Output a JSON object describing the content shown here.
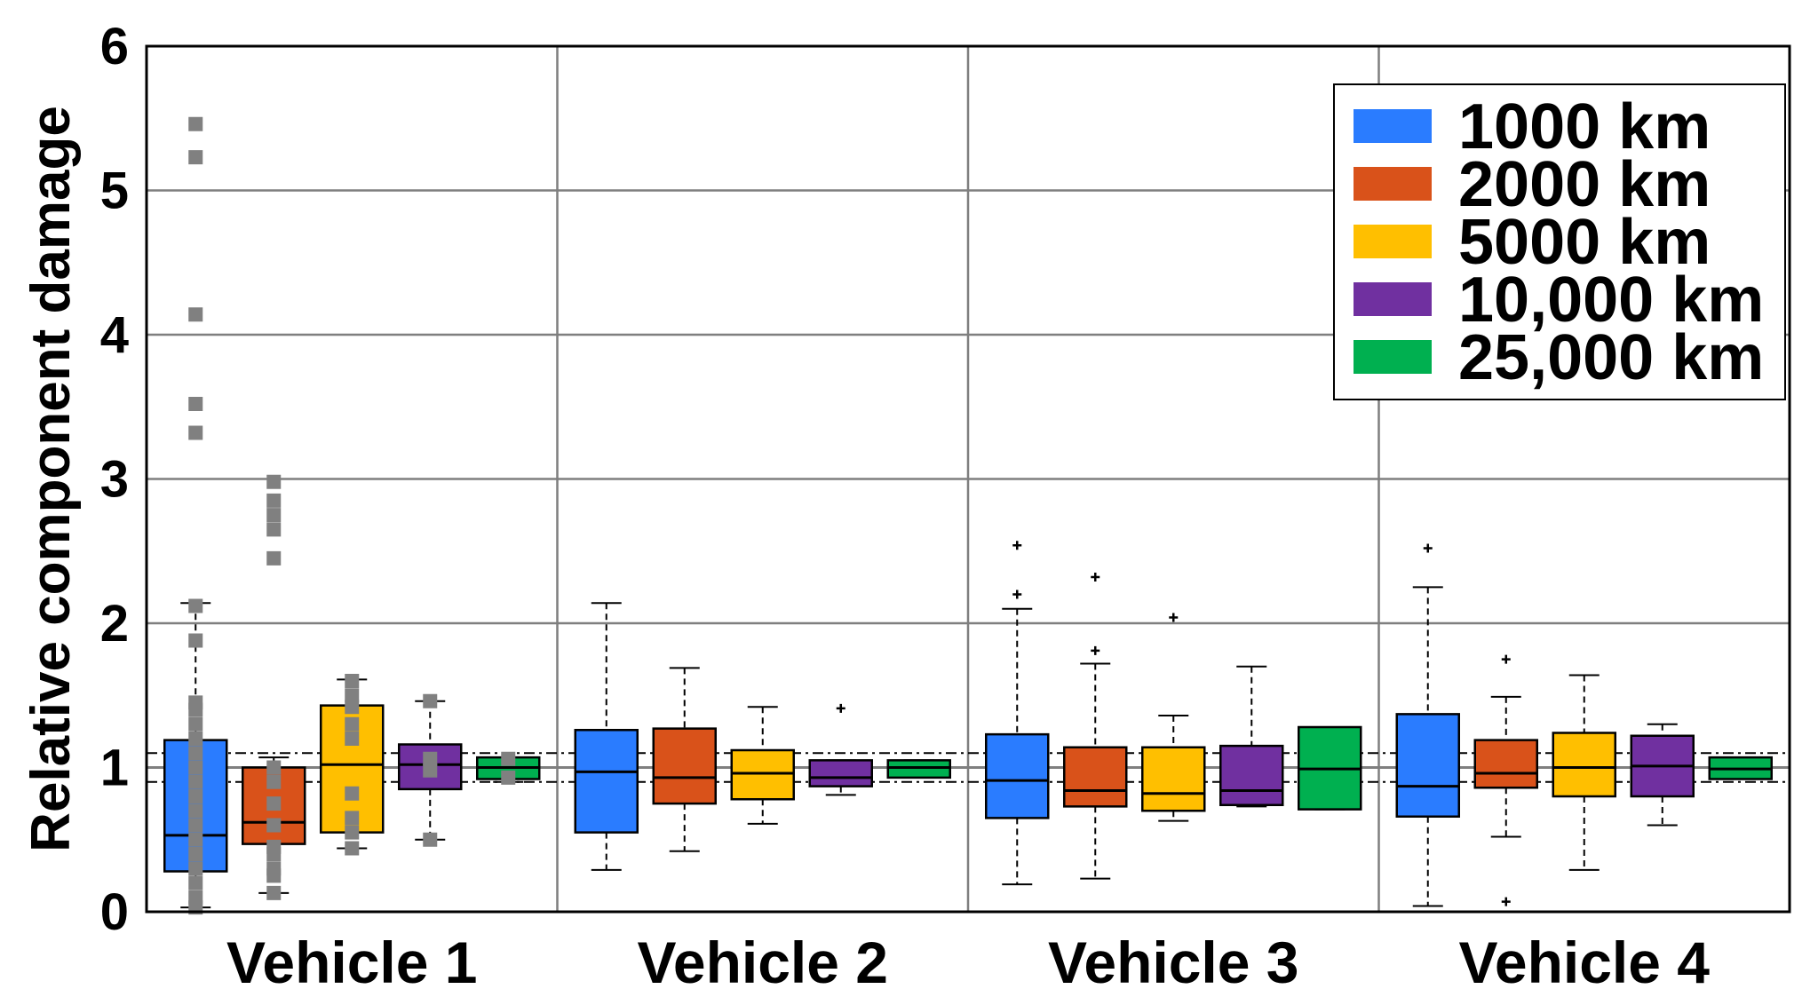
{
  "chart_data": {
    "type": "box",
    "title": "",
    "xlabel": "",
    "ylabel": "Relative component damage",
    "ylim": [
      0,
      6
    ],
    "yticks": [
      "0",
      "1",
      "2",
      "3",
      "4",
      "5",
      "6"
    ],
    "grid": true,
    "legend_position": "top-right",
    "reference_lines": {
      "solid": 1.0,
      "dashdot": [
        0.9,
        1.1
      ]
    },
    "categories": [
      "Vehicle 1",
      "Vehicle 2",
      "Vehicle 3",
      "Vehicle 4"
    ],
    "series": [
      {
        "name": "1000 km",
        "color": "#2A7CFF",
        "boxes": [
          {
            "whisker_low": 0.03,
            "q1": 0.28,
            "median": 0.53,
            "q3": 1.19,
            "whisker_high": 2.14,
            "outliers": []
          },
          {
            "whisker_low": 0.29,
            "q1": 0.55,
            "median": 0.97,
            "q3": 1.26,
            "whisker_high": 2.14,
            "outliers": []
          },
          {
            "whisker_low": 0.19,
            "q1": 0.65,
            "median": 0.91,
            "q3": 1.23,
            "whisker_high": 2.1,
            "outliers": [
              2.2,
              2.54
            ]
          },
          {
            "whisker_low": 0.04,
            "q1": 0.66,
            "median": 0.87,
            "q3": 1.37,
            "whisker_high": 2.25,
            "outliers": [
              2.52
            ]
          }
        ]
      },
      {
        "name": "2000 km",
        "color": "#D9521A",
        "boxes": [
          {
            "whisker_low": 0.13,
            "q1": 0.47,
            "median": 0.62,
            "q3": 1.0,
            "whisker_high": 1.07,
            "outliers": []
          },
          {
            "whisker_low": 0.42,
            "q1": 0.75,
            "median": 0.93,
            "q3": 1.27,
            "whisker_high": 1.69,
            "outliers": []
          },
          {
            "whisker_low": 0.23,
            "q1": 0.73,
            "median": 0.84,
            "q3": 1.14,
            "whisker_high": 1.72,
            "outliers": [
              1.81,
              2.32
            ]
          },
          {
            "whisker_low": 0.52,
            "q1": 0.86,
            "median": 0.96,
            "q3": 1.19,
            "whisker_high": 1.49,
            "outliers": [
              0.07,
              1.75
            ]
          }
        ]
      },
      {
        "name": "5000 km",
        "color": "#FFBF00",
        "boxes": [
          {
            "whisker_low": 0.44,
            "q1": 0.55,
            "median": 1.02,
            "q3": 1.43,
            "whisker_high": 1.61,
            "outliers": []
          },
          {
            "whisker_low": 0.61,
            "q1": 0.78,
            "median": 0.96,
            "q3": 1.12,
            "whisker_high": 1.42,
            "outliers": []
          },
          {
            "whisker_low": 0.63,
            "q1": 0.7,
            "median": 0.82,
            "q3": 1.14,
            "whisker_high": 1.36,
            "outliers": [
              2.04
            ]
          },
          {
            "whisker_low": 0.29,
            "q1": 0.8,
            "median": 1.0,
            "q3": 1.24,
            "whisker_high": 1.64,
            "outliers": []
          }
        ]
      },
      {
        "name": "10,000 km",
        "color": "#7030A0",
        "boxes": [
          {
            "whisker_low": 0.5,
            "q1": 0.85,
            "median": 1.02,
            "q3": 1.16,
            "whisker_high": 1.46,
            "outliers": []
          },
          {
            "whisker_low": 0.81,
            "q1": 0.87,
            "median": 0.93,
            "q3": 1.05,
            "whisker_high": 1.05,
            "outliers": [
              1.41
            ]
          },
          {
            "whisker_low": 0.73,
            "q1": 0.74,
            "median": 0.84,
            "q3": 1.15,
            "whisker_high": 1.7,
            "outliers": []
          },
          {
            "whisker_low": 0.6,
            "q1": 0.8,
            "median": 1.01,
            "q3": 1.22,
            "whisker_high": 1.3,
            "outliers": []
          }
        ]
      },
      {
        "name": "25,000 km",
        "color": "#00B050",
        "boxes": [
          {
            "whisker_low": 0.9,
            "q1": 0.92,
            "median": 1.0,
            "q3": 1.07,
            "whisker_high": 1.07,
            "outliers": []
          },
          {
            "whisker_low": 0.93,
            "q1": 0.93,
            "median": 1.0,
            "q3": 1.05,
            "whisker_high": 1.05,
            "outliers": []
          },
          {
            "whisker_low": 0.71,
            "q1": 0.71,
            "median": 0.99,
            "q3": 1.28,
            "whisker_high": 1.28,
            "outliers": []
          },
          {
            "whisker_low": 0.92,
            "q1": 0.92,
            "median": 0.99,
            "q3": 1.07,
            "whisker_high": 1.07,
            "outliers": []
          }
        ]
      }
    ],
    "vehicle1_raw_points": [
      {
        "series": "1000 km",
        "values": [
          0.03,
          0.1,
          0.2,
          0.3,
          0.4,
          0.5,
          0.6,
          0.7,
          0.8,
          0.9,
          1.0,
          1.1,
          1.2,
          1.3,
          1.4,
          1.45,
          1.88,
          2.12,
          3.32,
          3.52,
          4.14,
          5.23,
          5.46
        ]
      },
      {
        "series": "2000 km",
        "values": [
          0.13,
          0.25,
          0.3,
          0.4,
          0.45,
          0.6,
          0.75,
          0.9,
          1.0,
          2.45,
          2.65,
          2.75,
          2.85,
          2.98
        ]
      },
      {
        "series": "5000 km",
        "values": [
          0.44,
          0.55,
          0.65,
          0.82,
          1.2,
          1.3,
          1.42,
          1.5,
          1.6
        ]
      },
      {
        "series": "10,000 km",
        "values": [
          0.5,
          0.98,
          1.06,
          1.46
        ]
      },
      {
        "series": "25,000 km",
        "values": [
          0.93,
          1.06
        ]
      }
    ]
  }
}
